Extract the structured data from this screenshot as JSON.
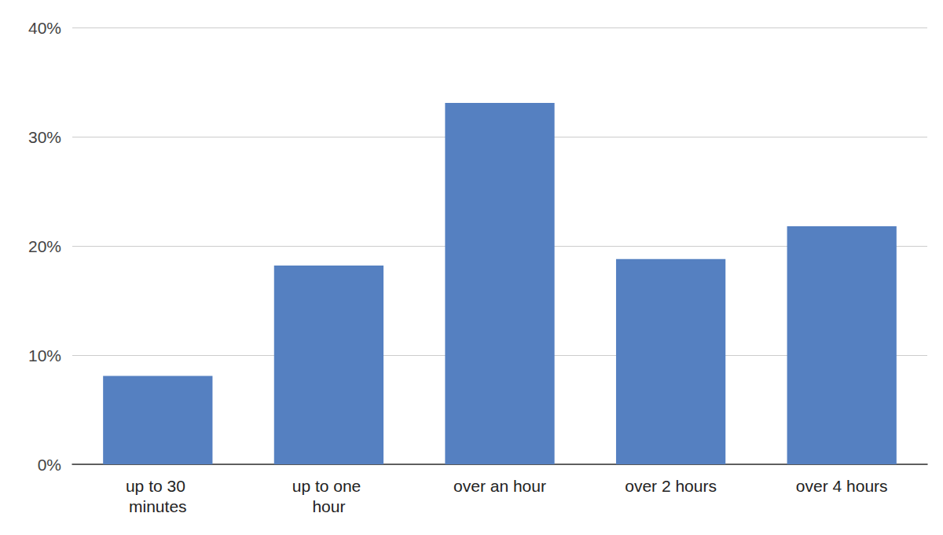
{
  "chart_data": {
    "type": "bar",
    "categories": [
      "up to 30 minutes",
      "up to one hour",
      "over an hour",
      "over 2 hours",
      "over 4 hours"
    ],
    "values": [
      8.1,
      18.2,
      33.1,
      18.8,
      21.8
    ],
    "color": "#5580c1",
    "ylim": [
      0,
      40
    ],
    "yticks": [
      {
        "value": 0,
        "label": "0%"
      },
      {
        "value": 10,
        "label": "10%"
      },
      {
        "value": 20,
        "label": "20%"
      },
      {
        "value": 30,
        "label": "30%"
      },
      {
        "value": 40,
        "label": "40%"
      }
    ],
    "grid": true
  }
}
